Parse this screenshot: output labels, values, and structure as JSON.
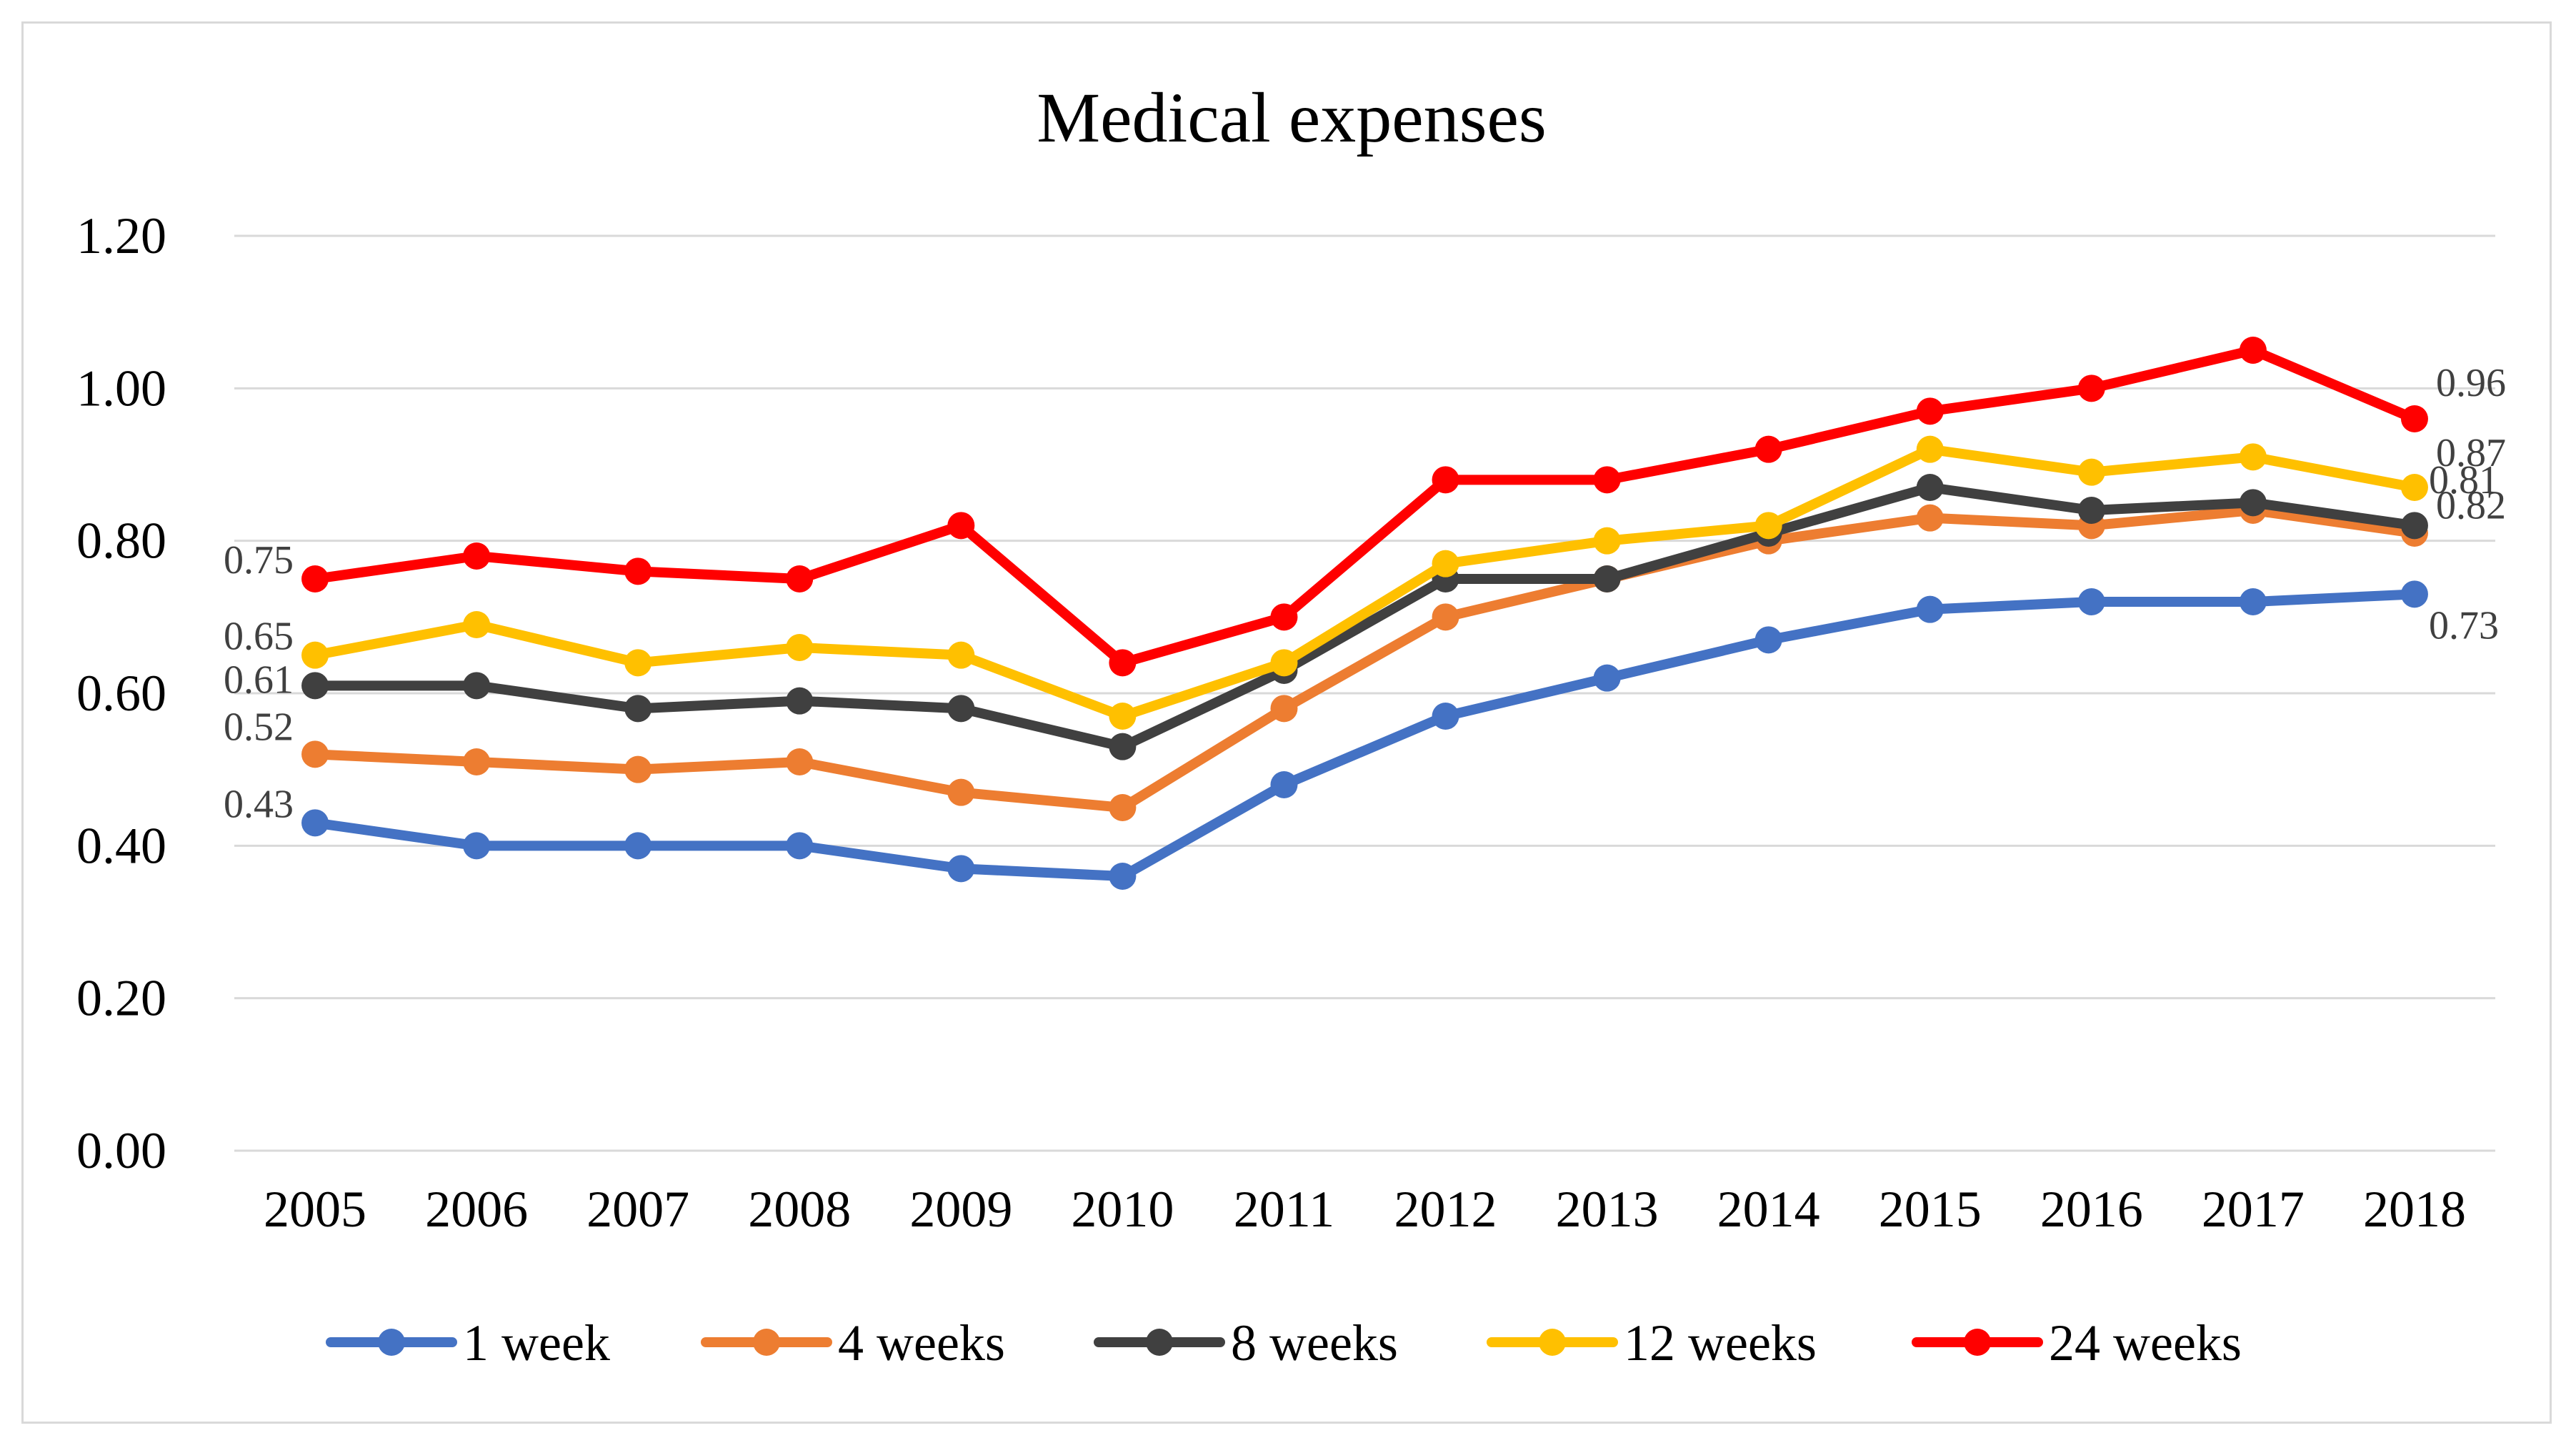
{
  "chart_data": {
    "type": "line",
    "title": "Medical expenses",
    "xlabel": "",
    "ylabel": "",
    "ylim": [
      0,
      1.2
    ],
    "y_ticks": [
      "0.00",
      "0.20",
      "0.40",
      "0.60",
      "0.80",
      "1.00",
      "1.20"
    ],
    "categories": [
      "2005",
      "2006",
      "2007",
      "2008",
      "2009",
      "2010",
      "2011",
      "2012",
      "2013",
      "2014",
      "2015",
      "2016",
      "2017",
      "2018"
    ],
    "grid": true,
    "legend_position": "bottom",
    "series": [
      {
        "name": "1 week",
        "color": "#4472C4",
        "values": [
          0.43,
          0.4,
          0.4,
          0.4,
          0.37,
          0.36,
          0.48,
          0.57,
          0.62,
          0.67,
          0.71,
          0.72,
          0.72,
          0.73
        ],
        "first_label": "0.43",
        "last_label": "0.73"
      },
      {
        "name": "4 weeks",
        "color": "#ED7D31",
        "values": [
          0.52,
          0.51,
          0.5,
          0.51,
          0.47,
          0.45,
          0.58,
          0.7,
          0.75,
          0.8,
          0.83,
          0.82,
          0.84,
          0.81
        ],
        "first_label": "0.52",
        "last_label": "0.81"
      },
      {
        "name": "8 weeks",
        "color": "#404040",
        "values": [
          0.61,
          0.61,
          0.58,
          0.59,
          0.58,
          0.53,
          0.63,
          0.75,
          0.75,
          0.81,
          0.87,
          0.84,
          0.85,
          0.82
        ],
        "first_label": "0.61",
        "last_label": "0.82"
      },
      {
        "name": "12 weeks",
        "color": "#FFC000",
        "values": [
          0.65,
          0.69,
          0.64,
          0.66,
          0.65,
          0.57,
          0.64,
          0.77,
          0.8,
          0.82,
          0.92,
          0.89,
          0.91,
          0.87
        ],
        "first_label": "0.65",
        "last_label": "0.87"
      },
      {
        "name": "24 weeks",
        "color": "#FF0000",
        "values": [
          0.75,
          0.78,
          0.76,
          0.75,
          0.82,
          0.64,
          0.7,
          0.88,
          0.88,
          0.92,
          0.97,
          1.0,
          1.05,
          0.96
        ],
        "first_label": "0.75",
        "last_label": "0.96"
      }
    ]
  }
}
